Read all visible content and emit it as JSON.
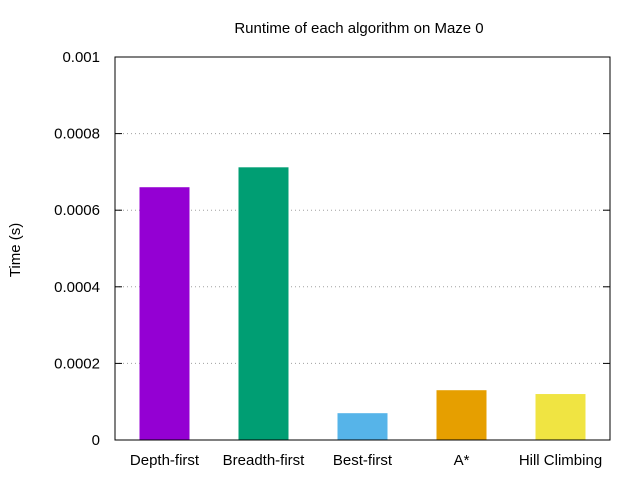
{
  "chart_data": {
    "type": "bar",
    "title": "Runtime of each algorithm on Maze 0",
    "xlabel": "",
    "ylabel": "Time (s)",
    "ylim": [
      0,
      0.001
    ],
    "yticks": [
      "0",
      "0.0002",
      "0.0004",
      "0.0006",
      "0.0008",
      "0.001"
    ],
    "ytick_values": [
      0,
      0.0002,
      0.0004,
      0.0006,
      0.0008,
      0.001
    ],
    "categories": [
      "Depth-first",
      "Breadth-first",
      "Best-first",
      "A*",
      "Hill Climbing"
    ],
    "values": [
      0.00066,
      0.000712,
      7e-05,
      0.00013,
      0.00012
    ],
    "colors": [
      "#9400d3",
      "#009e73",
      "#56b4e9",
      "#e69f00",
      "#f0e442"
    ],
    "grid": "horizontal-dotted",
    "legend": "none"
  }
}
